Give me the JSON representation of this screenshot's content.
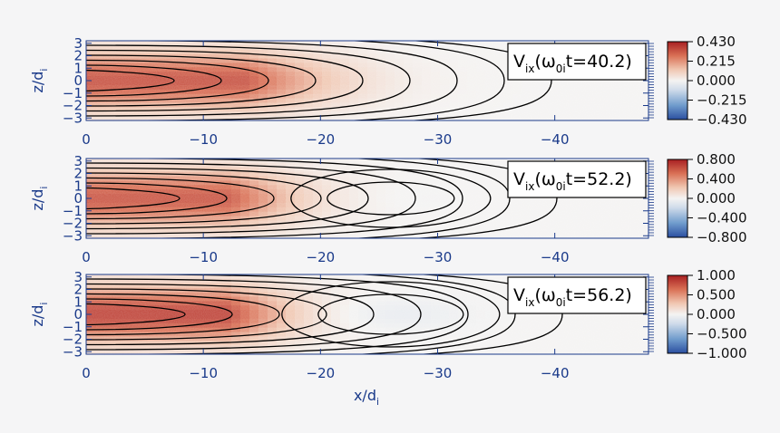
{
  "chart_data": [
    {
      "type": "heatmap",
      "xlabel": "x/d",
      "xlabel_sub": "i",
      "ylabel": "z/d",
      "ylabel_sub": "i",
      "x_ticks": [
        "0",
        "−10",
        "−20",
        "−30",
        "−40"
      ],
      "x_tick_values": [
        0,
        -10,
        -20,
        -30,
        -40
      ],
      "xlim": [
        0,
        -48
      ],
      "y_ticks": [
        "3",
        "2",
        "1",
        "0",
        "−1",
        "−2",
        "−3"
      ],
      "y_tick_values": [
        3,
        2,
        1,
        0,
        -1,
        -2,
        -3
      ],
      "ylim": [
        -3.2,
        3.2
      ],
      "annotation": {
        "pre": "V",
        "sub1": "ix",
        "mid": "(ω",
        "sub2": "0i",
        "post": "t=40.2)"
      },
      "colorbar": {
        "ticks": [
          "0.430",
          "0.215",
          "0.000",
          "−0.215",
          "−0.430"
        ],
        "range": [
          -0.43,
          0.43
        ]
      },
      "field": {
        "peak": 0.34,
        "peak_x": -6,
        "decay_x": -22,
        "negative_lobe": 0
      }
    },
    {
      "type": "heatmap",
      "xlabel": "",
      "ylabel": "z/d",
      "ylabel_sub": "i",
      "x_ticks": [
        "0",
        "−10",
        "−20",
        "−30",
        "−40"
      ],
      "x_tick_values": [
        0,
        -10,
        -20,
        -30,
        -40
      ],
      "xlim": [
        0,
        -48
      ],
      "y_ticks": [
        "3",
        "2",
        "1",
        "0",
        "−1",
        "−2",
        "−3"
      ],
      "y_tick_values": [
        3,
        2,
        1,
        0,
        -1,
        -2,
        -3
      ],
      "ylim": [
        -3.2,
        3.2
      ],
      "annotation": {
        "pre": "V",
        "sub1": "ix",
        "mid": "(ω",
        "sub2": "0i",
        "post": "t=52.2)"
      },
      "colorbar": {
        "ticks": [
          "0.800",
          "0.400",
          "0.000",
          "−0.400",
          "−0.800"
        ],
        "range": [
          -0.8,
          0.8
        ]
      },
      "field": {
        "peak": 0.62,
        "peak_x": -5,
        "decay_x": -18,
        "negative_lobe": 0.02
      }
    },
    {
      "type": "heatmap",
      "xlabel": "x/d",
      "xlabel_sub": "i",
      "ylabel": "z/d",
      "ylabel_sub": "i",
      "x_ticks": [
        "0",
        "−10",
        "−20",
        "−30",
        "−40"
      ],
      "x_tick_values": [
        0,
        -10,
        -20,
        -30,
        -40
      ],
      "xlim": [
        0,
        -48
      ],
      "y_ticks": [
        "3",
        "2",
        "1",
        "0",
        "−1",
        "−2",
        "−3"
      ],
      "y_tick_values": [
        3,
        2,
        1,
        0,
        -1,
        -2,
        -3
      ],
      "ylim": [
        -3.2,
        3.2
      ],
      "annotation": {
        "pre": "V",
        "sub1": "ix",
        "mid": "(ω",
        "sub2": "0i",
        "post": "t=56.2)"
      },
      "colorbar": {
        "ticks": [
          "1.000",
          "0.500",
          "0.000",
          "−0.500",
          "−1.000"
        ],
        "range": [
          -1,
          1
        ]
      },
      "field": {
        "peak": 0.85,
        "peak_x": -5,
        "decay_x": -17,
        "negative_lobe": 0.12
      }
    }
  ],
  "colors": {
    "axis": "#1a3a8a",
    "colormap": [
      "#2b4fa0",
      "#6f9bcc",
      "#cfdbea",
      "#f4f3f2",
      "#f0c7b2",
      "#d97055",
      "#a81f22"
    ],
    "contour": "#000000",
    "background": "#f5f5f6"
  }
}
